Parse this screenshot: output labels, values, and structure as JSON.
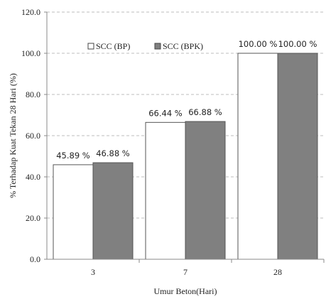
{
  "chart_data": {
    "type": "bar",
    "categories": [
      "3",
      "7",
      "28"
    ],
    "series": [
      {
        "name": "SCC (BP)",
        "values": [
          45.89,
          66.44,
          100.0
        ],
        "labels": [
          "45.89 %",
          "66.44 %",
          "100.00 %"
        ],
        "color": "#ffffff"
      },
      {
        "name": "SCC (BPK)",
        "values": [
          46.88,
          66.88,
          100.0
        ],
        "labels": [
          "46.88 %",
          "66.88 %",
          "100.00 %"
        ],
        "color": "#808080"
      }
    ],
    "ylim": [
      0,
      120
    ],
    "yticks": [
      "0.0",
      "20.0",
      "40.0",
      "60.0",
      "80.0",
      "100.0",
      "120.0"
    ],
    "xlabel": "Umur Beton(Hari)",
    "ylabel": "% Terhadap Kuat Tekan 28 Hari (%)",
    "grid": true,
    "legend_position": "top-left"
  }
}
